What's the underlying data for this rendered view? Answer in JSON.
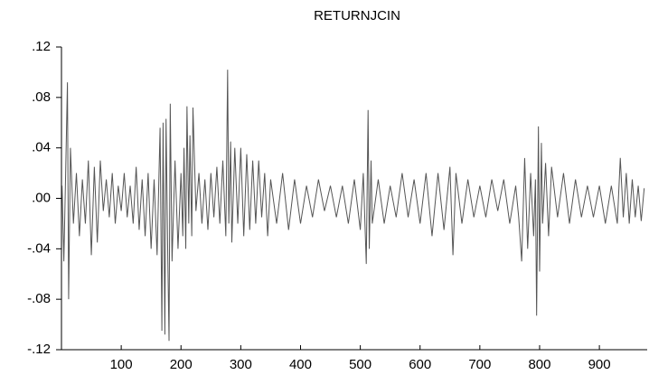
{
  "chart_data": {
    "type": "line",
    "title": "RETURNJCIN",
    "color": "#555555",
    "x": [
      1,
      4,
      7,
      10,
      12,
      15,
      20,
      25,
      30,
      35,
      40,
      45,
      50,
      55,
      60,
      65,
      70,
      75,
      80,
      85,
      90,
      95,
      100,
      105,
      110,
      115,
      120,
      125,
      130,
      135,
      140,
      145,
      150,
      155,
      160,
      165,
      168,
      170,
      173,
      175,
      178,
      180,
      182,
      185,
      190,
      195,
      200,
      203,
      205,
      208,
      210,
      213,
      215,
      218,
      220,
      225,
      230,
      235,
      240,
      245,
      250,
      255,
      260,
      265,
      270,
      275,
      278,
      280,
      283,
      285,
      290,
      295,
      300,
      305,
      310,
      315,
      320,
      325,
      330,
      335,
      340,
      345,
      350,
      360,
      370,
      380,
      390,
      400,
      410,
      420,
      430,
      440,
      450,
      460,
      470,
      480,
      490,
      500,
      505,
      510,
      513,
      515,
      518,
      520,
      530,
      540,
      550,
      560,
      570,
      580,
      590,
      600,
      610,
      620,
      630,
      640,
      650,
      655,
      660,
      670,
      680,
      690,
      700,
      710,
      720,
      730,
      740,
      750,
      760,
      765,
      770,
      775,
      780,
      785,
      790,
      793,
      795,
      798,
      800,
      803,
      805,
      810,
      815,
      820,
      830,
      840,
      850,
      860,
      870,
      880,
      890,
      900,
      910,
      920,
      930,
      935,
      940,
      945,
      950,
      955,
      960,
      965,
      970,
      975
    ],
    "values": [
      0.01,
      -0.05,
      0.02,
      0.092,
      -0.08,
      0.04,
      -0.02,
      0.02,
      -0.03,
      0.015,
      -0.02,
      0.03,
      -0.045,
      0.025,
      -0.035,
      0.03,
      -0.01,
      0.015,
      -0.015,
      0.02,
      -0.02,
      0.01,
      -0.01,
      0.02,
      -0.015,
      0.01,
      -0.02,
      0.025,
      -0.025,
      0.015,
      -0.03,
      0.02,
      -0.04,
      0.015,
      -0.045,
      0.056,
      -0.105,
      0.06,
      -0.108,
      0.063,
      -0.05,
      -0.113,
      0.075,
      -0.05,
      0.03,
      -0.04,
      0.02,
      -0.03,
      0.04,
      -0.04,
      0.073,
      -0.02,
      0.05,
      -0.03,
      0.072,
      -0.01,
      0.02,
      -0.02,
      0.015,
      -0.025,
      0.02,
      -0.015,
      0.025,
      -0.02,
      0.03,
      -0.03,
      0.102,
      -0.02,
      0.045,
      -0.035,
      0.04,
      -0.02,
      0.04,
      -0.03,
      0.035,
      -0.025,
      0.03,
      -0.02,
      0.03,
      -0.015,
      0.02,
      -0.03,
      0.015,
      -0.02,
      0.02,
      -0.025,
      0.015,
      -0.02,
      0.01,
      -0.015,
      0.015,
      -0.01,
      0.01,
      -0.015,
      0.01,
      -0.02,
      0.015,
      -0.025,
      0.02,
      -0.052,
      0.07,
      -0.04,
      0.03,
      -0.02,
      0.015,
      -0.02,
      0.01,
      -0.015,
      0.02,
      -0.015,
      0.015,
      -0.02,
      0.02,
      -0.03,
      0.02,
      -0.025,
      0.025,
      -0.045,
      0.02,
      -0.02,
      0.015,
      -0.015,
      0.01,
      -0.015,
      0.015,
      -0.01,
      0.015,
      -0.02,
      0.01,
      -0.015,
      -0.05,
      0.032,
      -0.04,
      0.02,
      -0.03,
      0.015,
      -0.093,
      0.057,
      -0.058,
      0.044,
      -0.02,
      0.028,
      -0.03,
      0.025,
      -0.015,
      0.02,
      -0.02,
      0.015,
      -0.015,
      0.01,
      -0.015,
      0.01,
      -0.02,
      0.01,
      -0.02,
      0.032,
      -0.015,
      0.02,
      -0.02,
      0.015,
      -0.015,
      0.01,
      -0.018,
      0.008
    ],
    "xlim": [
      0,
      980
    ],
    "xticks": [
      100,
      200,
      300,
      400,
      500,
      600,
      700,
      800,
      900
    ],
    "ylim": [
      -0.12,
      0.12
    ],
    "yticks": [
      {
        "value": 0.12,
        "label": ".12"
      },
      {
        "value": 0.08,
        "label": ".08"
      },
      {
        "value": 0.04,
        "label": ".04"
      },
      {
        "value": 0,
        "label": ".00"
      },
      {
        "value": -0.04,
        "label": "-.04"
      },
      {
        "value": -0.08,
        "label": "-.08"
      },
      {
        "value": -0.12,
        "label": "-.12"
      }
    ]
  }
}
